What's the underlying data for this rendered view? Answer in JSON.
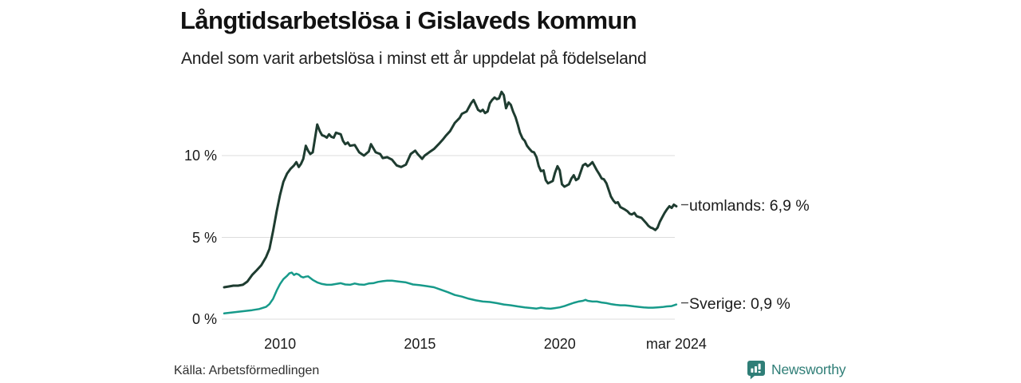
{
  "footer": {
    "source": "Källa: Arbetsförmedlingen",
    "brand": "Newsworthy"
  },
  "colors": {
    "background": "#ffffff",
    "gridline": "#dcdcdc",
    "utomlands_line": "#1e3c30",
    "sverige_line": "#179a8a",
    "leader_tick": "#4a4a4a",
    "brand_teal": "#2f7e77",
    "text": "#1a1a1a"
  },
  "chart_data": {
    "type": "line",
    "title": "Långtidsarbetslösa i Gislaveds kommun",
    "subtitle": "Andel som varit arbetslösa i minst ett år uppdelat på födelseland",
    "unit": "%",
    "grid": "horizontal",
    "legend_position": "end-of-line-labels",
    "xlim": [
      2008.0,
      2024.25
    ],
    "ylim": [
      0,
      14.5
    ],
    "x_axis": {
      "ticks": [
        {
          "label": "2010",
          "t": 2010
        },
        {
          "label": "2015",
          "t": 2015
        },
        {
          "label": "2020",
          "t": 2020
        },
        {
          "label": "mar 2024",
          "t": 2024.17
        }
      ]
    },
    "y_axis": {
      "ticks": [
        {
          "label": "0 %",
          "v": 0
        },
        {
          "label": "5 %",
          "v": 5
        },
        {
          "label": "10 %",
          "v": 10
        }
      ]
    },
    "series": [
      {
        "name": "utomlands",
        "label": "utomlands: 6,9 %",
        "end_value": 6.9,
        "color": "#1e3c30",
        "width": 3,
        "points": [
          [
            2008.0,
            1.95
          ],
          [
            2008.17,
            2.0
          ],
          [
            2008.33,
            2.05
          ],
          [
            2008.5,
            2.05
          ],
          [
            2008.67,
            2.1
          ],
          [
            2008.83,
            2.3
          ],
          [
            2009.0,
            2.7
          ],
          [
            2009.17,
            3.0
          ],
          [
            2009.33,
            3.3
          ],
          [
            2009.5,
            3.8
          ],
          [
            2009.62,
            4.3
          ],
          [
            2009.75,
            5.4
          ],
          [
            2009.88,
            6.6
          ],
          [
            2010.0,
            7.6
          ],
          [
            2010.12,
            8.4
          ],
          [
            2010.25,
            8.9
          ],
          [
            2010.38,
            9.2
          ],
          [
            2010.5,
            9.4
          ],
          [
            2010.58,
            9.6
          ],
          [
            2010.67,
            9.3
          ],
          [
            2010.75,
            9.5
          ],
          [
            2010.83,
            9.8
          ],
          [
            2010.92,
            10.6
          ],
          [
            2011.0,
            10.3
          ],
          [
            2011.08,
            10.1
          ],
          [
            2011.17,
            10.2
          ],
          [
            2011.33,
            11.9
          ],
          [
            2011.42,
            11.5
          ],
          [
            2011.5,
            11.25
          ],
          [
            2011.58,
            11.2
          ],
          [
            2011.67,
            11.1
          ],
          [
            2011.75,
            11.3
          ],
          [
            2011.83,
            11.15
          ],
          [
            2011.92,
            11.1
          ],
          [
            2012.0,
            11.4
          ],
          [
            2012.17,
            11.3
          ],
          [
            2012.25,
            10.9
          ],
          [
            2012.33,
            10.7
          ],
          [
            2012.42,
            10.8
          ],
          [
            2012.5,
            10.6
          ],
          [
            2012.67,
            10.65
          ],
          [
            2012.83,
            10.2
          ],
          [
            2013.0,
            10.0
          ],
          [
            2013.17,
            10.25
          ],
          [
            2013.25,
            10.7
          ],
          [
            2013.42,
            10.2
          ],
          [
            2013.58,
            10.1
          ],
          [
            2013.67,
            9.85
          ],
          [
            2013.83,
            9.9
          ],
          [
            2014.0,
            9.75
          ],
          [
            2014.17,
            9.4
          ],
          [
            2014.33,
            9.3
          ],
          [
            2014.5,
            9.45
          ],
          [
            2014.58,
            9.75
          ],
          [
            2014.67,
            10.1
          ],
          [
            2014.83,
            10.3
          ],
          [
            2014.92,
            10.1
          ],
          [
            2015.08,
            9.8
          ],
          [
            2015.17,
            10.0
          ],
          [
            2015.33,
            10.2
          ],
          [
            2015.5,
            10.4
          ],
          [
            2015.67,
            10.7
          ],
          [
            2015.83,
            11.0
          ],
          [
            2015.92,
            11.2
          ],
          [
            2016.08,
            11.5
          ],
          [
            2016.25,
            12.0
          ],
          [
            2016.42,
            12.3
          ],
          [
            2016.5,
            12.55
          ],
          [
            2016.67,
            12.7
          ],
          [
            2016.83,
            13.2
          ],
          [
            2016.92,
            13.4
          ],
          [
            2017.0,
            13.1
          ],
          [
            2017.08,
            12.8
          ],
          [
            2017.17,
            12.7
          ],
          [
            2017.25,
            12.8
          ],
          [
            2017.33,
            12.6
          ],
          [
            2017.42,
            12.7
          ],
          [
            2017.5,
            13.2
          ],
          [
            2017.58,
            13.4
          ],
          [
            2017.67,
            13.55
          ],
          [
            2017.75,
            13.45
          ],
          [
            2017.83,
            13.5
          ],
          [
            2017.92,
            13.9
          ],
          [
            2018.0,
            13.7
          ],
          [
            2018.08,
            12.9
          ],
          [
            2018.17,
            13.25
          ],
          [
            2018.25,
            13.1
          ],
          [
            2018.33,
            12.7
          ],
          [
            2018.42,
            12.35
          ],
          [
            2018.5,
            11.9
          ],
          [
            2018.58,
            11.4
          ],
          [
            2018.67,
            11.05
          ],
          [
            2018.75,
            10.9
          ],
          [
            2018.83,
            10.6
          ],
          [
            2018.92,
            10.4
          ],
          [
            2019.0,
            10.25
          ],
          [
            2019.08,
            10.2
          ],
          [
            2019.17,
            9.9
          ],
          [
            2019.25,
            9.35
          ],
          [
            2019.33,
            9.05
          ],
          [
            2019.42,
            9.1
          ],
          [
            2019.5,
            8.5
          ],
          [
            2019.58,
            8.3
          ],
          [
            2019.75,
            8.45
          ],
          [
            2019.83,
            8.95
          ],
          [
            2019.92,
            9.35
          ],
          [
            2020.0,
            9.1
          ],
          [
            2020.08,
            8.25
          ],
          [
            2020.17,
            8.1
          ],
          [
            2020.33,
            8.25
          ],
          [
            2020.42,
            8.6
          ],
          [
            2020.5,
            8.8
          ],
          [
            2020.58,
            8.5
          ],
          [
            2020.67,
            8.6
          ],
          [
            2020.75,
            9.0
          ],
          [
            2020.83,
            9.4
          ],
          [
            2020.92,
            9.5
          ],
          [
            2021.0,
            9.35
          ],
          [
            2021.08,
            9.45
          ],
          [
            2021.17,
            9.6
          ],
          [
            2021.33,
            9.1
          ],
          [
            2021.42,
            8.85
          ],
          [
            2021.5,
            8.6
          ],
          [
            2021.58,
            8.55
          ],
          [
            2021.67,
            8.3
          ],
          [
            2021.75,
            7.9
          ],
          [
            2021.83,
            7.5
          ],
          [
            2021.92,
            7.25
          ],
          [
            2022.0,
            7.1
          ],
          [
            2022.08,
            7.15
          ],
          [
            2022.17,
            6.85
          ],
          [
            2022.33,
            6.7
          ],
          [
            2022.42,
            6.6
          ],
          [
            2022.5,
            6.45
          ],
          [
            2022.58,
            6.4
          ],
          [
            2022.67,
            6.5
          ],
          [
            2022.75,
            6.3
          ],
          [
            2022.83,
            6.25
          ],
          [
            2022.92,
            6.2
          ],
          [
            2023.0,
            6.05
          ],
          [
            2023.08,
            5.9
          ],
          [
            2023.17,
            5.7
          ],
          [
            2023.25,
            5.6
          ],
          [
            2023.33,
            5.55
          ],
          [
            2023.42,
            5.45
          ],
          [
            2023.5,
            5.6
          ],
          [
            2023.58,
            5.95
          ],
          [
            2023.67,
            6.25
          ],
          [
            2023.75,
            6.5
          ],
          [
            2023.83,
            6.7
          ],
          [
            2023.92,
            6.9
          ],
          [
            2024.0,
            6.8
          ],
          [
            2024.08,
            7.0
          ],
          [
            2024.17,
            6.9
          ]
        ]
      },
      {
        "name": "sverige",
        "label": "Sverige: 0,9 %",
        "end_value": 0.9,
        "color": "#179a8a",
        "width": 2.5,
        "points": [
          [
            2008.0,
            0.35
          ],
          [
            2008.25,
            0.4
          ],
          [
            2008.5,
            0.45
          ],
          [
            2008.75,
            0.5
          ],
          [
            2009.0,
            0.55
          ],
          [
            2009.25,
            0.62
          ],
          [
            2009.5,
            0.75
          ],
          [
            2009.62,
            0.92
          ],
          [
            2009.75,
            1.25
          ],
          [
            2009.88,
            1.75
          ],
          [
            2010.0,
            2.15
          ],
          [
            2010.12,
            2.45
          ],
          [
            2010.25,
            2.65
          ],
          [
            2010.33,
            2.8
          ],
          [
            2010.42,
            2.85
          ],
          [
            2010.5,
            2.7
          ],
          [
            2010.58,
            2.78
          ],
          [
            2010.67,
            2.72
          ],
          [
            2010.75,
            2.6
          ],
          [
            2010.83,
            2.55
          ],
          [
            2010.92,
            2.6
          ],
          [
            2011.0,
            2.62
          ],
          [
            2011.17,
            2.4
          ],
          [
            2011.33,
            2.25
          ],
          [
            2011.5,
            2.15
          ],
          [
            2011.67,
            2.1
          ],
          [
            2011.83,
            2.1
          ],
          [
            2012.0,
            2.15
          ],
          [
            2012.17,
            2.2
          ],
          [
            2012.33,
            2.12
          ],
          [
            2012.5,
            2.1
          ],
          [
            2012.67,
            2.18
          ],
          [
            2012.83,
            2.12
          ],
          [
            2013.0,
            2.1
          ],
          [
            2013.17,
            2.18
          ],
          [
            2013.33,
            2.2
          ],
          [
            2013.5,
            2.28
          ],
          [
            2013.67,
            2.32
          ],
          [
            2013.83,
            2.35
          ],
          [
            2014.0,
            2.35
          ],
          [
            2014.25,
            2.3
          ],
          [
            2014.5,
            2.25
          ],
          [
            2014.75,
            2.12
          ],
          [
            2015.0,
            2.08
          ],
          [
            2015.25,
            2.02
          ],
          [
            2015.5,
            1.95
          ],
          [
            2015.75,
            1.8
          ],
          [
            2016.0,
            1.65
          ],
          [
            2016.25,
            1.48
          ],
          [
            2016.5,
            1.38
          ],
          [
            2016.75,
            1.25
          ],
          [
            2017.0,
            1.15
          ],
          [
            2017.25,
            1.08
          ],
          [
            2017.5,
            1.05
          ],
          [
            2017.75,
            0.98
          ],
          [
            2018.0,
            0.9
          ],
          [
            2018.25,
            0.85
          ],
          [
            2018.5,
            0.78
          ],
          [
            2018.75,
            0.72
          ],
          [
            2019.0,
            0.68
          ],
          [
            2019.17,
            0.65
          ],
          [
            2019.33,
            0.7
          ],
          [
            2019.5,
            0.66
          ],
          [
            2019.67,
            0.64
          ],
          [
            2019.83,
            0.68
          ],
          [
            2020.0,
            0.72
          ],
          [
            2020.17,
            0.8
          ],
          [
            2020.33,
            0.9
          ],
          [
            2020.5,
            1.0
          ],
          [
            2020.67,
            1.08
          ],
          [
            2020.83,
            1.12
          ],
          [
            2020.92,
            1.18
          ],
          [
            2021.0,
            1.12
          ],
          [
            2021.17,
            1.08
          ],
          [
            2021.33,
            1.08
          ],
          [
            2021.5,
            1.02
          ],
          [
            2021.67,
            0.98
          ],
          [
            2021.83,
            0.92
          ],
          [
            2022.0,
            0.88
          ],
          [
            2022.17,
            0.85
          ],
          [
            2022.33,
            0.85
          ],
          [
            2022.5,
            0.82
          ],
          [
            2022.67,
            0.78
          ],
          [
            2022.83,
            0.75
          ],
          [
            2023.0,
            0.72
          ],
          [
            2023.17,
            0.7
          ],
          [
            2023.33,
            0.7
          ],
          [
            2023.5,
            0.72
          ],
          [
            2023.67,
            0.74
          ],
          [
            2023.83,
            0.78
          ],
          [
            2024.0,
            0.8
          ],
          [
            2024.17,
            0.9
          ]
        ]
      }
    ]
  }
}
